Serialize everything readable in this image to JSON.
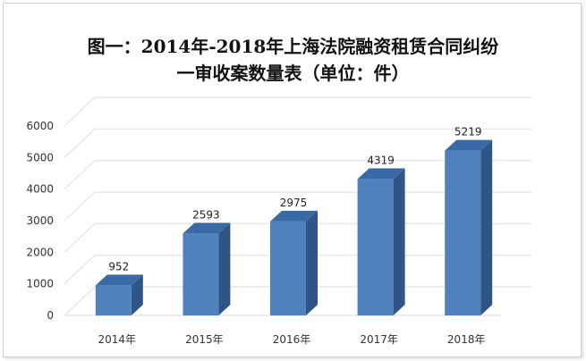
{
  "chart_data": {
    "type": "bar",
    "title": "图一：2014年-2018年上海法院融资租赁合同纠纷",
    "subtitle": "一审收案数量表（单位：件）",
    "categories": [
      "2014年",
      "2015年",
      "2016年",
      "2017年",
      "2018年"
    ],
    "values": [
      952,
      2593,
      2975,
      4319,
      5219
    ],
    "data_labels": [
      "952",
      "2593",
      "2975",
      "4319",
      "5219"
    ],
    "y_ticks": [
      "0",
      "1000",
      "2000",
      "3000",
      "4000",
      "5000",
      "6000"
    ],
    "ylim": [
      0,
      6000
    ],
    "grid": true,
    "legend": "none",
    "style": "3d-column",
    "colors": {
      "bar_front": "#4f81bd",
      "bar_side": "#2e5586",
      "bar_top": "#3a6aa6",
      "grid": "#e2e2e2"
    }
  }
}
